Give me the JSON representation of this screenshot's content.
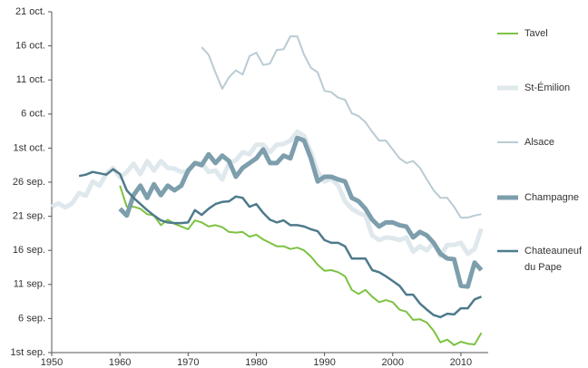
{
  "chart_data": {
    "type": "line",
    "x": [
      1950,
      1951,
      1952,
      1953,
      1954,
      1955,
      1956,
      1957,
      1958,
      1959,
      1960,
      1961,
      1962,
      1963,
      1964,
      1965,
      1966,
      1967,
      1968,
      1969,
      1970,
      1971,
      1972,
      1973,
      1974,
      1975,
      1976,
      1977,
      1978,
      1979,
      1980,
      1981,
      1982,
      1983,
      1984,
      1985,
      1986,
      1987,
      1988,
      1989,
      1990,
      1991,
      1992,
      1993,
      1994,
      1995,
      1996,
      1997,
      1998,
      1999,
      2000,
      2001,
      2002,
      2003,
      2004,
      2005,
      2006,
      2007,
      2008,
      2009,
      2010,
      2011,
      2012,
      2013
    ],
    "xlim": [
      1950,
      2014
    ],
    "xticks": [
      1950,
      1960,
      1970,
      1980,
      1990,
      2000,
      2010
    ],
    "ylim": [
      1,
      51
    ],
    "yticks": [
      {
        "value": 1,
        "label": "1st sep."
      },
      {
        "value": 6,
        "label": "6 sep."
      },
      {
        "value": 11,
        "label": "11 sep."
      },
      {
        "value": 16,
        "label": "16 sep."
      },
      {
        "value": 21,
        "label": "21 sep."
      },
      {
        "value": 26,
        "label": "26 sep."
      },
      {
        "value": 31,
        "label": "1st oct."
      },
      {
        "value": 36,
        "label": "6 oct."
      },
      {
        "value": 41,
        "label": "11 oct."
      },
      {
        "value": 46,
        "label": "16 oct."
      },
      {
        "value": 51,
        "label": "21 oct."
      }
    ],
    "grid": false,
    "series": [
      {
        "name": "Tavel",
        "color": "#7dc242",
        "width": 2,
        "values": [
          null,
          null,
          null,
          null,
          null,
          null,
          null,
          null,
          null,
          null,
          25.5,
          22.4,
          22.4,
          22.1,
          21.3,
          21.1,
          19.7,
          20.5,
          19.9,
          19.5,
          19.1,
          20.4,
          20.1,
          19.5,
          19.7,
          19.4,
          18.7,
          18.6,
          18.7,
          18.0,
          18.3,
          17.6,
          17.1,
          16.6,
          16.6,
          16.2,
          16.4,
          16.0,
          15.1,
          13.9,
          13.0,
          13.1,
          12.8,
          12.2,
          10.2,
          9.6,
          10.2,
          9.2,
          8.4,
          8.7,
          8.4,
          7.3,
          7.0,
          5.8,
          5.9,
          5.4,
          4.2,
          2.5,
          2.9,
          2.1,
          2.6,
          2.3,
          2.2,
          3.9
        ]
      },
      {
        "name": "St-Émilion",
        "color": "#dfe8ec",
        "width": 5,
        "values": [
          22.4,
          22.9,
          22.3,
          22.9,
          24.4,
          24.0,
          26.1,
          25.5,
          27.2,
          28.1,
          26.7,
          27.5,
          28.7,
          27.2,
          29.1,
          27.7,
          29.1,
          28.1,
          28.0,
          27.5,
          27.5,
          28.8,
          28.8,
          27.5,
          27.7,
          26.4,
          28.8,
          29.2,
          30.4,
          30.1,
          31.5,
          31.5,
          30.4,
          31.5,
          31.6,
          32.1,
          33.4,
          32.8,
          30.4,
          27.5,
          26.1,
          26.5,
          25.5,
          23.2,
          22.1,
          21.5,
          21.1,
          18.2,
          17.5,
          17.9,
          17.8,
          17.5,
          17.9,
          15.8,
          16.6,
          16.0,
          17.1,
          15.2,
          16.8,
          16.8,
          17.1,
          15.5,
          16.2,
          19.2
        ]
      },
      {
        "name": "Alsace",
        "color": "#b9cbd3",
        "width": 2,
        "values": [
          null,
          null,
          null,
          null,
          null,
          null,
          null,
          null,
          null,
          null,
          null,
          null,
          null,
          null,
          null,
          null,
          null,
          null,
          null,
          null,
          null,
          null,
          45.8,
          44.7,
          42.1,
          39.7,
          41.4,
          42.4,
          41.8,
          44.5,
          45.0,
          43.2,
          43.4,
          45.4,
          45.5,
          47.4,
          47.4,
          44.7,
          42.8,
          42.1,
          39.4,
          39.2,
          38.4,
          38.1,
          36.1,
          35.7,
          34.8,
          33.4,
          32.1,
          32.1,
          30.8,
          29.5,
          28.8,
          29.1,
          28.1,
          26.4,
          24.8,
          23.7,
          23.7,
          22.4,
          20.8,
          20.8,
          21.1,
          21.3
        ]
      },
      {
        "name": "Champagne",
        "color": "#7d9eac",
        "width": 5,
        "values": [
          null,
          null,
          null,
          null,
          null,
          null,
          null,
          null,
          null,
          null,
          22.1,
          21.1,
          24.1,
          25.5,
          23.7,
          25.7,
          24.1,
          25.5,
          24.8,
          25.5,
          27.7,
          28.8,
          28.5,
          30.1,
          28.8,
          29.9,
          29.1,
          26.8,
          28.1,
          28.8,
          29.5,
          30.8,
          28.8,
          28.8,
          29.9,
          29.5,
          32.5,
          32.1,
          29.5,
          26.1,
          26.8,
          26.8,
          26.4,
          26.1,
          23.7,
          23.2,
          22.1,
          20.5,
          19.5,
          20.1,
          20.1,
          19.7,
          19.5,
          17.9,
          18.7,
          18.2,
          17.1,
          15.5,
          14.8,
          14.7,
          10.8,
          10.7,
          14.2,
          13.1
        ]
      },
      {
        "name": "Chateauneuf du Pape",
        "color": "#4e7a8c",
        "width": 2.5,
        "values": [
          null,
          null,
          null,
          null,
          26.9,
          27.1,
          27.5,
          27.3,
          27.1,
          27.9,
          27.2,
          24.8,
          23.7,
          22.8,
          21.9,
          21.1,
          20.4,
          20.1,
          20.0,
          20.0,
          20.1,
          21.9,
          21.2,
          22.1,
          22.8,
          23.1,
          23.2,
          23.9,
          23.7,
          22.4,
          22.8,
          21.5,
          20.5,
          20.1,
          20.4,
          19.7,
          19.7,
          19.5,
          19.1,
          18.8,
          17.5,
          17.1,
          17.1,
          16.6,
          14.8,
          14.8,
          14.8,
          13.1,
          12.8,
          12.2,
          11.5,
          10.8,
          9.5,
          9.5,
          8.2,
          7.3,
          6.5,
          6.2,
          6.7,
          6.6,
          7.5,
          7.5,
          8.8,
          9.2
        ]
      }
    ]
  }
}
